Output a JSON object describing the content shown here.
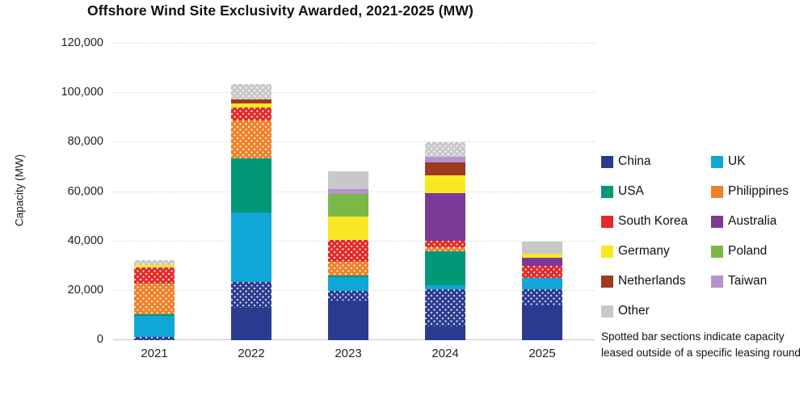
{
  "title": "Offshore Wind Site Exclusivity Awarded, 2021-2025 (MW)",
  "y_axis": {
    "label": "Capacity (MW)",
    "ticks": [
      "0",
      "20,000",
      "40,000",
      "60,000",
      "80,000",
      "100,000",
      "120,000"
    ]
  },
  "note": "Spotted bar sections indicate capacity leased outside of a specific leasing round",
  "legend": {
    "entries": [
      {
        "label": "China",
        "color": "#2a3b8f"
      },
      {
        "label": "UK",
        "color": "#0fa7d7"
      },
      {
        "label": "USA",
        "color": "#009877"
      },
      {
        "label": "Philippines",
        "color": "#f08028"
      },
      {
        "label": "South Korea",
        "color": "#e22a28"
      },
      {
        "label": "Australia",
        "color": "#7c3997"
      },
      {
        "label": "Germany",
        "color": "#f8e824"
      },
      {
        "label": "Poland",
        "color": "#7ab848"
      },
      {
        "label": "Netherlands",
        "color": "#9e3a1e"
      },
      {
        "label": "Taiwan",
        "color": "#b492ce"
      },
      {
        "label": "Other",
        "color": "#c8c8c8"
      }
    ]
  },
  "chart_data": {
    "type": "bar",
    "stacked": true,
    "unit": "MW",
    "title": "Offshore Wind Site Exclusivity Awarded, 2021-2025 (MW)",
    "xlabel": "",
    "ylabel": "Capacity (MW)",
    "ylim": [
      0,
      120000
    ],
    "grid": true,
    "legend_position": "right",
    "categories": [
      "2021",
      "2022",
      "2023",
      "2024",
      "2025"
    ],
    "series": [
      {
        "name": "China",
        "values": [
          1300,
          23600,
          19900,
          20600,
          20600
        ]
      },
      {
        "name": "UK",
        "values": [
          8500,
          28100,
          5600,
          1600,
          4600
        ]
      },
      {
        "name": "USA",
        "values": [
          700,
          21900,
          700,
          13700,
          0
        ]
      },
      {
        "name": "Philippines",
        "values": [
          12400,
          15400,
          5600,
          1600,
          0
        ]
      },
      {
        "name": "South Korea",
        "values": [
          6500,
          5200,
          8800,
          2600,
          4900
        ]
      },
      {
        "name": "Australia",
        "values": [
          0,
          0,
          0,
          19300,
          3300
        ]
      },
      {
        "name": "Germany",
        "values": [
          1000,
          1600,
          9500,
          7200,
          1600
        ]
      },
      {
        "name": "Poland",
        "values": [
          0,
          0,
          9200,
          0,
          0
        ]
      },
      {
        "name": "Netherlands",
        "values": [
          0,
          1600,
          0,
          5200,
          0
        ]
      },
      {
        "name": "Taiwan",
        "values": [
          0,
          0,
          2000,
          2600,
          0
        ]
      },
      {
        "name": "Other",
        "values": [
          2100,
          6200,
          7200,
          5600,
          4900
        ]
      }
    ],
    "bars": [
      {
        "category": "2021",
        "total": 32500,
        "segments": [
          {
            "country": "China",
            "value": 1300,
            "spotted": true
          },
          {
            "country": "UK",
            "value": 8500,
            "spotted": false
          },
          {
            "country": "USA",
            "value": 700,
            "spotted": false
          },
          {
            "country": "Philippines",
            "value": 12400,
            "spotted": true
          },
          {
            "country": "South Korea",
            "value": 6500,
            "spotted": true
          },
          {
            "country": "Germany",
            "value": 1000,
            "spotted": false
          },
          {
            "country": "Other",
            "value": 2100,
            "spotted": true
          }
        ]
      },
      {
        "category": "2022",
        "total": 103600,
        "segments": [
          {
            "country": "China",
            "value": 13100,
            "spotted": false
          },
          {
            "country": "China",
            "value": 10500,
            "spotted": true
          },
          {
            "country": "UK",
            "value": 28100,
            "spotted": false
          },
          {
            "country": "USA",
            "value": 21900,
            "spotted": false
          },
          {
            "country": "Philippines",
            "value": 15400,
            "spotted": true
          },
          {
            "country": "South Korea",
            "value": 5200,
            "spotted": true
          },
          {
            "country": "Germany",
            "value": 1600,
            "spotted": false
          },
          {
            "country": "Netherlands",
            "value": 1600,
            "spotted": false
          },
          {
            "country": "Other",
            "value": 6200,
            "spotted": true
          }
        ]
      },
      {
        "category": "2023",
        "total": 68500,
        "segments": [
          {
            "country": "China",
            "value": 16000,
            "spotted": false
          },
          {
            "country": "China",
            "value": 3900,
            "spotted": true
          },
          {
            "country": "UK",
            "value": 5600,
            "spotted": false
          },
          {
            "country": "USA",
            "value": 700,
            "spotted": false
          },
          {
            "country": "Philippines",
            "value": 5600,
            "spotted": true
          },
          {
            "country": "South Korea",
            "value": 8800,
            "spotted": true
          },
          {
            "country": "Germany",
            "value": 9500,
            "spotted": false
          },
          {
            "country": "Poland",
            "value": 9200,
            "spotted": false
          },
          {
            "country": "Taiwan",
            "value": 2000,
            "spotted": false
          },
          {
            "country": "Other",
            "value": 7200,
            "spotted": false
          }
        ]
      },
      {
        "category": "2024",
        "total": 80000,
        "segments": [
          {
            "country": "China",
            "value": 5600,
            "spotted": false
          },
          {
            "country": "China",
            "value": 15000,
            "spotted": true
          },
          {
            "country": "UK",
            "value": 1600,
            "spotted": false
          },
          {
            "country": "USA",
            "value": 13700,
            "spotted": false
          },
          {
            "country": "Philippines",
            "value": 1600,
            "spotted": true
          },
          {
            "country": "South Korea",
            "value": 2600,
            "spotted": true
          },
          {
            "country": "Australia",
            "value": 19300,
            "spotted": false
          },
          {
            "country": "Germany",
            "value": 7200,
            "spotted": false
          },
          {
            "country": "Netherlands",
            "value": 5200,
            "spotted": false
          },
          {
            "country": "Taiwan",
            "value": 2600,
            "spotted": false
          },
          {
            "country": "Other",
            "value": 5600,
            "spotted": true
          }
        ]
      },
      {
        "category": "2025",
        "total": 39900,
        "segments": [
          {
            "country": "China",
            "value": 14100,
            "spotted": false
          },
          {
            "country": "China",
            "value": 6500,
            "spotted": true
          },
          {
            "country": "UK",
            "value": 4600,
            "spotted": false
          },
          {
            "country": "South Korea",
            "value": 4900,
            "spotted": true
          },
          {
            "country": "Australia",
            "value": 3300,
            "spotted": false
          },
          {
            "country": "Germany",
            "value": 1600,
            "spotted": false
          },
          {
            "country": "Other",
            "value": 4900,
            "spotted": false
          }
        ]
      }
    ]
  }
}
